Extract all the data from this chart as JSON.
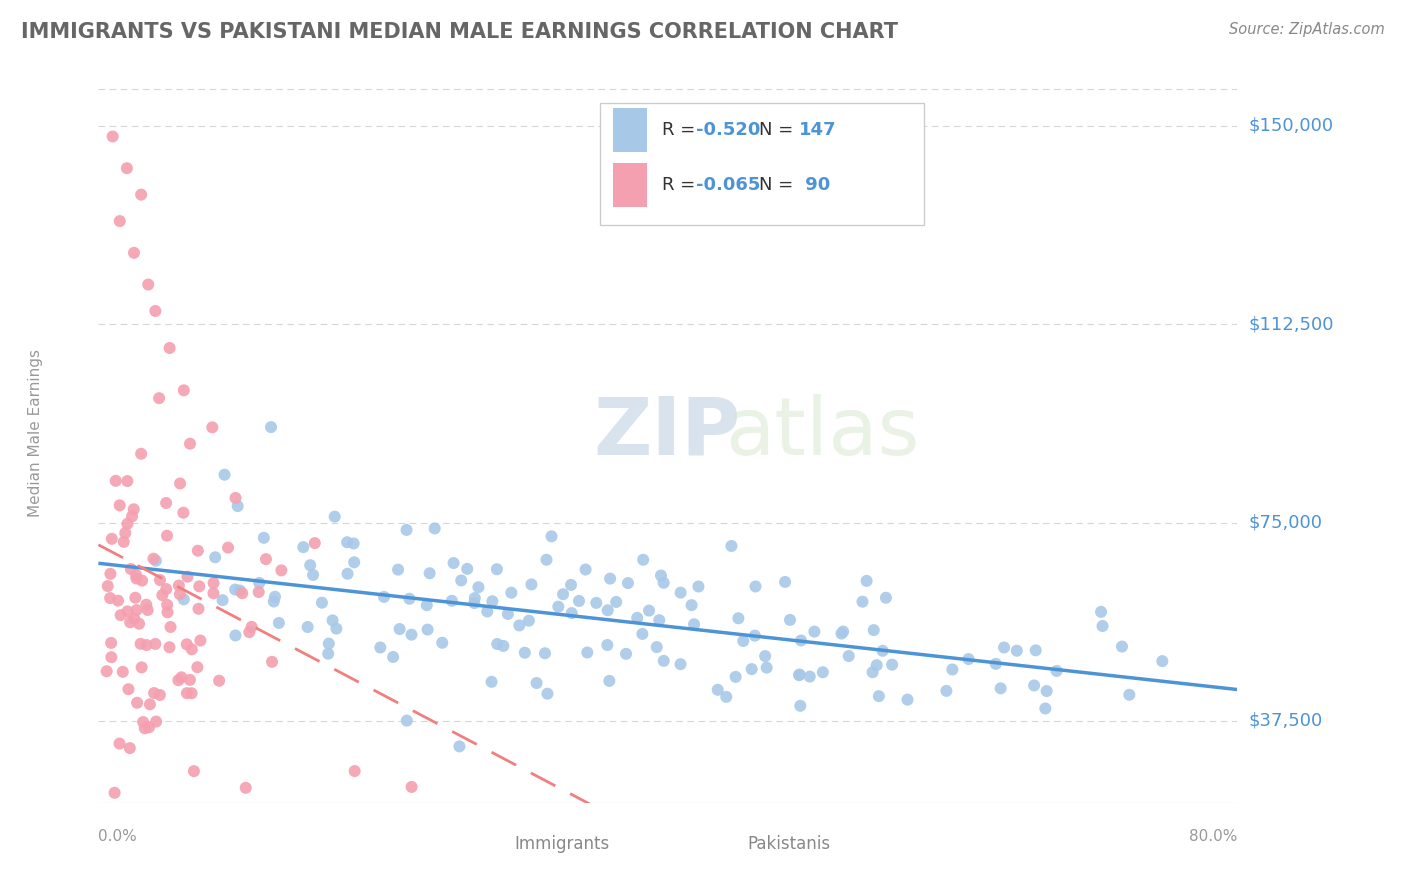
{
  "title": "IMMIGRANTS VS PAKISTANI MEDIAN MALE EARNINGS CORRELATION CHART",
  "source": "Source: ZipAtlas.com",
  "ylabel": "Median Male Earnings",
  "yticks": [
    37500,
    75000,
    112500,
    150000
  ],
  "ytick_labels": [
    "$37,500",
    "$75,000",
    "$112,500",
    "$150,000"
  ],
  "xmin": 0.0,
  "xmax": 0.8,
  "ymin": 22000,
  "ymax": 162000,
  "immigrants_R": -0.52,
  "immigrants_N": 147,
  "pakistanis_R": -0.065,
  "pakistanis_N": 90,
  "blue_color": "#4d94d6",
  "blue_light": "#a8c8e8",
  "pink_color": "#f08080",
  "pink_light": "#f4a0b0",
  "background_color": "#ffffff",
  "grid_color": "#cccccc",
  "title_color": "#666666",
  "legend_label_immigrants": "Immigrants",
  "legend_label_pakistanis": "Pakistanis",
  "watermark_zip": "ZIP",
  "watermark_atlas": "atlas",
  "source_color": "#888888"
}
